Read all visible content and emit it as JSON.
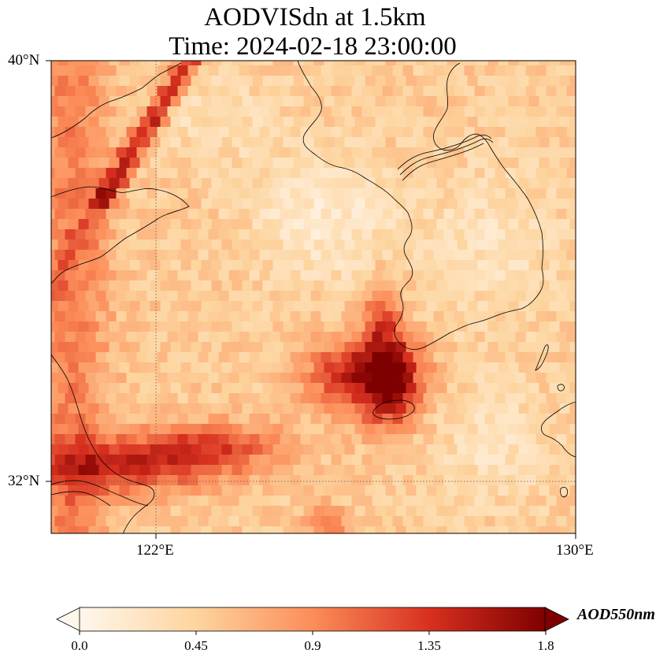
{
  "title": {
    "line1": "AODVISdn at 1.5km",
    "line2": "Time: 2024-02-18 23:00:00"
  },
  "map": {
    "type": "heatmap",
    "variable": "AODVISdn",
    "lat_range": [
      31,
      40
    ],
    "lon_range": [
      120,
      130
    ],
    "lat_ticks": [
      {
        "value": 40,
        "label": "40°N"
      },
      {
        "value": 32,
        "label": "32°N"
      }
    ],
    "lon_ticks": [
      {
        "value": 122,
        "label": "122°E"
      },
      {
        "value": 130,
        "label": "130°E"
      }
    ],
    "gridlines": "dotted",
    "colormap": "OrRd",
    "colors": [
      "#fff7ec",
      "#fdd49e",
      "#fc8d59",
      "#d7301f",
      "#7f0000"
    ]
  },
  "colorbar": {
    "label": "AOD550nm",
    "range": [
      0.0,
      1.8
    ],
    "ticks": [
      "0.0",
      "0.45",
      "0.9",
      "1.35",
      "1.8"
    ],
    "extend": "both"
  }
}
